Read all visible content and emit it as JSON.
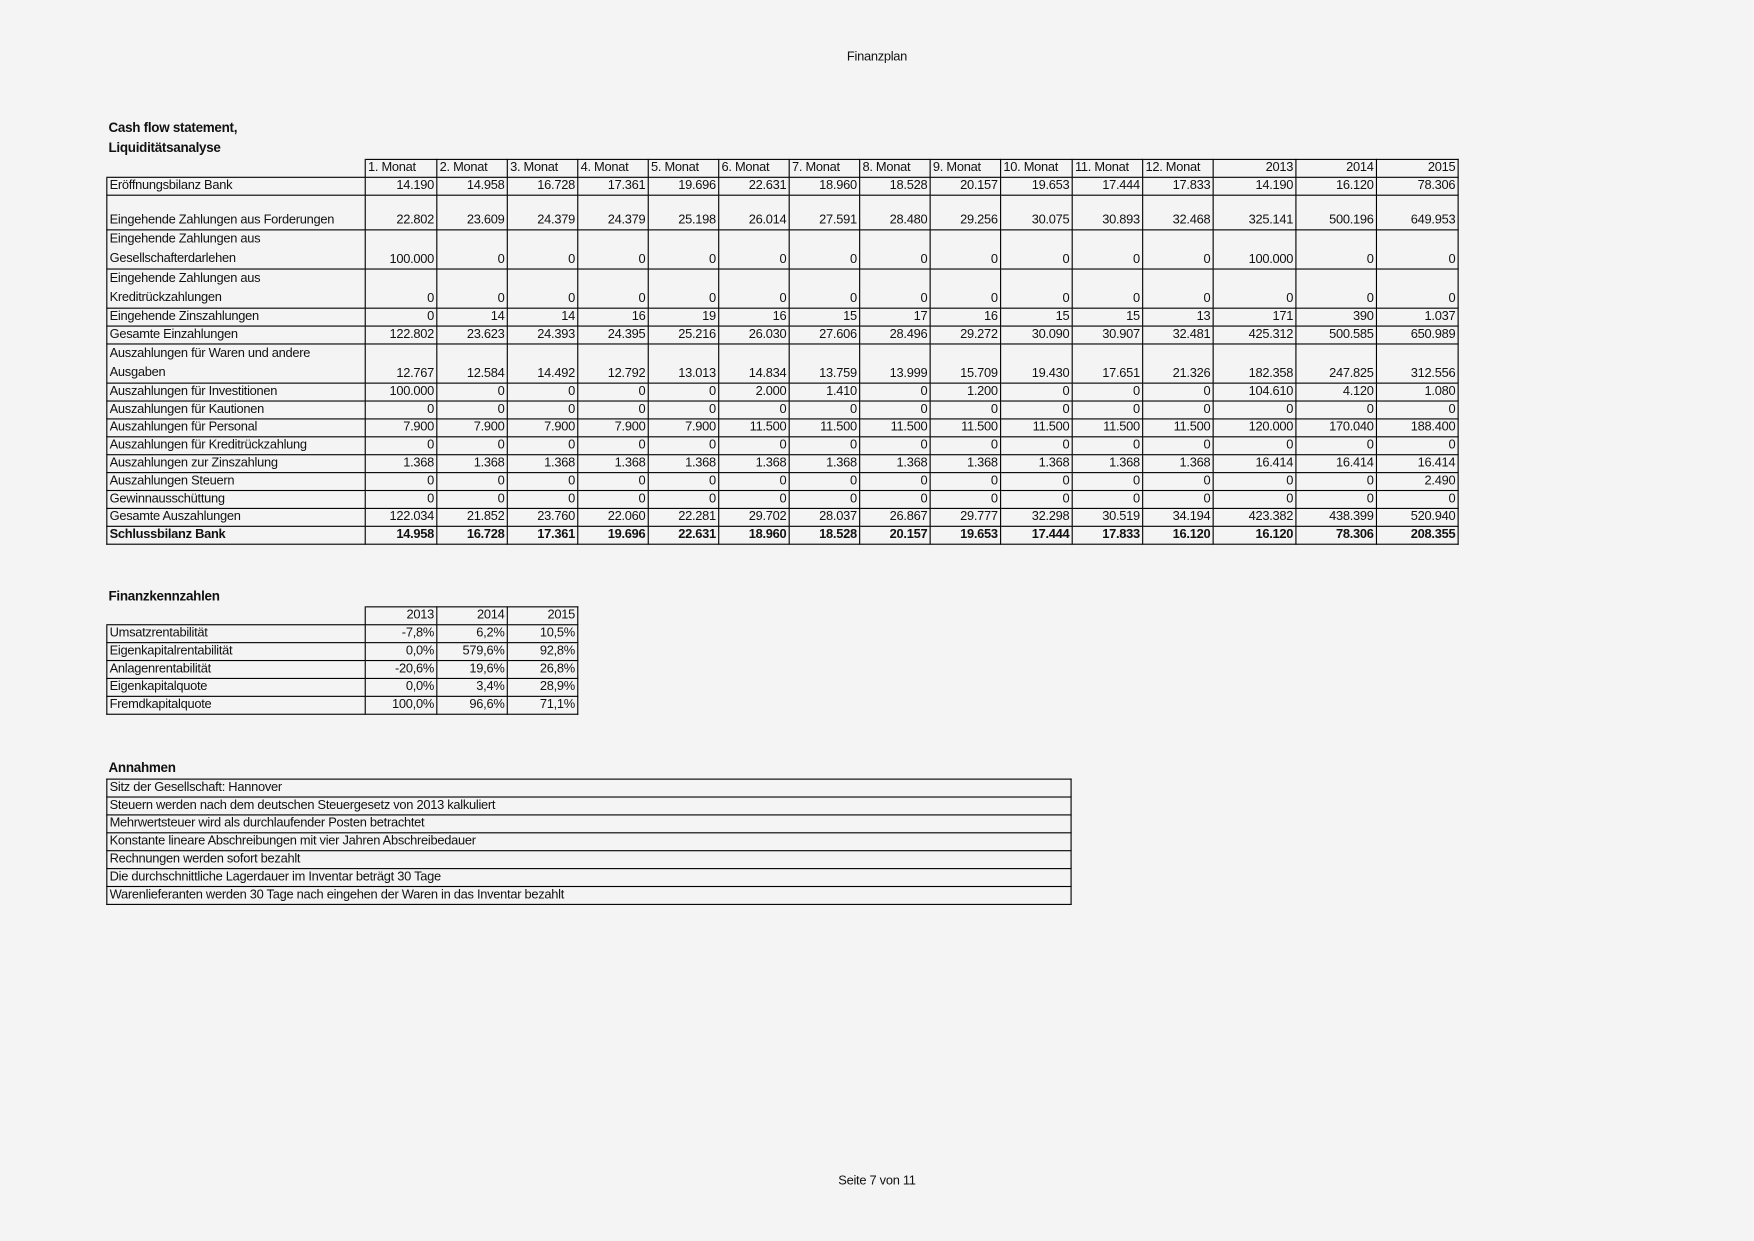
{
  "document": {
    "title": "Finanzplan",
    "footer": "Seite 7 von 11"
  },
  "cashflow": {
    "heading_line1": "Cash flow statement,",
    "heading_line2": "Liquiditätsanalyse",
    "columns": [
      "1. Monat",
      "2. Monat",
      "3. Monat",
      "4. Monat",
      "5. Monat",
      "6. Monat",
      "7. Monat",
      "8. Monat",
      "9. Monat",
      "10. Monat",
      "11. Monat",
      "12. Monat",
      "2013",
      "2014",
      "2015"
    ],
    "rows": [
      {
        "label": "Eröffnungsbilanz Bank",
        "values": [
          "14.190",
          "14.958",
          "16.728",
          "17.361",
          "19.696",
          "22.631",
          "18.960",
          "18.528",
          "20.157",
          "19.653",
          "17.444",
          "17.833",
          "14.190",
          "16.120",
          "78.306"
        ]
      },
      {
        "label": "Eingehende Zahlungen aus Forderungen",
        "values": [
          "22.802",
          "23.609",
          "24.379",
          "24.379",
          "25.198",
          "26.014",
          "27.591",
          "28.480",
          "29.256",
          "30.075",
          "30.893",
          "32.468",
          "325.141",
          "500.196",
          "649.953"
        ]
      },
      {
        "label": "Eingehende Zahlungen aus Gesellschafterdarlehen",
        "values": [
          "100.000",
          "0",
          "0",
          "0",
          "0",
          "0",
          "0",
          "0",
          "0",
          "0",
          "0",
          "0",
          "100.000",
          "0",
          "0"
        ]
      },
      {
        "label": "Eingehende Zahlungen aus Kreditrückzahlungen",
        "values": [
          "0",
          "0",
          "0",
          "0",
          "0",
          "0",
          "0",
          "0",
          "0",
          "0",
          "0",
          "0",
          "0",
          "0",
          "0"
        ]
      },
      {
        "label": "Eingehende Zinszahlungen",
        "values": [
          "0",
          "14",
          "14",
          "16",
          "19",
          "16",
          "15",
          "17",
          "16",
          "15",
          "15",
          "13",
          "171",
          "390",
          "1.037"
        ]
      },
      {
        "label": "Gesamte Einzahlungen",
        "values": [
          "122.802",
          "23.623",
          "24.393",
          "24.395",
          "25.216",
          "26.030",
          "27.606",
          "28.496",
          "29.272",
          "30.090",
          "30.907",
          "32.481",
          "425.312",
          "500.585",
          "650.989"
        ]
      },
      {
        "label": "Auszahlungen für Waren und andere Ausgaben",
        "values": [
          "12.767",
          "12.584",
          "14.492",
          "12.792",
          "13.013",
          "14.834",
          "13.759",
          "13.999",
          "15.709",
          "19.430",
          "17.651",
          "21.326",
          "182.358",
          "247.825",
          "312.556"
        ]
      },
      {
        "label": "Auszahlungen für Investitionen",
        "values": [
          "100.000",
          "0",
          "0",
          "0",
          "0",
          "2.000",
          "1.410",
          "0",
          "1.200",
          "0",
          "0",
          "0",
          "104.610",
          "4.120",
          "1.080"
        ]
      },
      {
        "label": "Auszahlungen für Kautionen",
        "values": [
          "0",
          "0",
          "0",
          "0",
          "0",
          "0",
          "0",
          "0",
          "0",
          "0",
          "0",
          "0",
          "0",
          "0",
          "0"
        ]
      },
      {
        "label": "Auszahlungen für Personal",
        "values": [
          "7.900",
          "7.900",
          "7.900",
          "7.900",
          "7.900",
          "11.500",
          "11.500",
          "11.500",
          "11.500",
          "11.500",
          "11.500",
          "11.500",
          "120.000",
          "170.040",
          "188.400"
        ]
      },
      {
        "label": "Auszahlungen für Kreditrückzahlung",
        "values": [
          "0",
          "0",
          "0",
          "0",
          "0",
          "0",
          "0",
          "0",
          "0",
          "0",
          "0",
          "0",
          "0",
          "0",
          "0"
        ]
      },
      {
        "label": "Auszahlungen zur Zinszahlung",
        "values": [
          "1.368",
          "1.368",
          "1.368",
          "1.368",
          "1.368",
          "1.368",
          "1.368",
          "1.368",
          "1.368",
          "1.368",
          "1.368",
          "1.368",
          "16.414",
          "16.414",
          "16.414"
        ]
      },
      {
        "label": "Auszahlungen Steuern",
        "values": [
          "0",
          "0",
          "0",
          "0",
          "0",
          "0",
          "0",
          "0",
          "0",
          "0",
          "0",
          "0",
          "0",
          "0",
          "2.490"
        ]
      },
      {
        "label": "Gewinnausschüttung",
        "values": [
          "0",
          "0",
          "0",
          "0",
          "0",
          "0",
          "0",
          "0",
          "0",
          "0",
          "0",
          "0",
          "0",
          "0",
          "0"
        ]
      },
      {
        "label": "Gesamte Auszahlungen",
        "values": [
          "122.034",
          "21.852",
          "23.760",
          "22.060",
          "22.281",
          "29.702",
          "28.037",
          "26.867",
          "29.777",
          "32.298",
          "30.519",
          "34.194",
          "423.382",
          "438.399",
          "520.940"
        ]
      },
      {
        "label": "Schlussbilanz Bank",
        "bold": true,
        "values": [
          "14.958",
          "16.728",
          "17.361",
          "19.696",
          "22.631",
          "18.960",
          "18.528",
          "20.157",
          "19.653",
          "17.444",
          "17.833",
          "16.120",
          "16.120",
          "78.306",
          "208.355"
        ]
      }
    ]
  },
  "kennzahlen": {
    "heading": "Finanzkennzahlen",
    "columns": [
      "2013",
      "2014",
      "2015"
    ],
    "rows": [
      {
        "label": "Umsatzrentabilität",
        "values": [
          "-7,8%",
          "6,2%",
          "10,5%"
        ]
      },
      {
        "label": "Eigenkapitalrentabilität",
        "values": [
          "0,0%",
          "579,6%",
          "92,8%"
        ]
      },
      {
        "label": "Anlagenrentabilität",
        "values": [
          "-20,6%",
          "19,6%",
          "26,8%"
        ]
      },
      {
        "label": "Eigenkapitalquote",
        "values": [
          "0,0%",
          "3,4%",
          "28,9%"
        ]
      },
      {
        "label": "Fremdkapitalquote",
        "values": [
          "100,0%",
          "96,6%",
          "71,1%"
        ]
      }
    ]
  },
  "annahmen": {
    "heading": "Annahmen",
    "items": [
      "Sitz der Gesellschaft: Hannover",
      "Steuern werden nach dem deutschen Steuergesetz von 2013 kalkuliert",
      "Mehrwertsteuer wird als durchlaufender Posten betrachtet",
      "Konstante lineare Abschreibungen mit vier Jahren Abschreibedauer",
      "Rechnungen werden sofort bezahlt",
      "Die durchschnittliche Lagerdauer im Inventar beträgt 30 Tage",
      "Warenlieferanten werden 30 Tage nach eingehen der Waren in das Inventar bezahlt"
    ]
  }
}
